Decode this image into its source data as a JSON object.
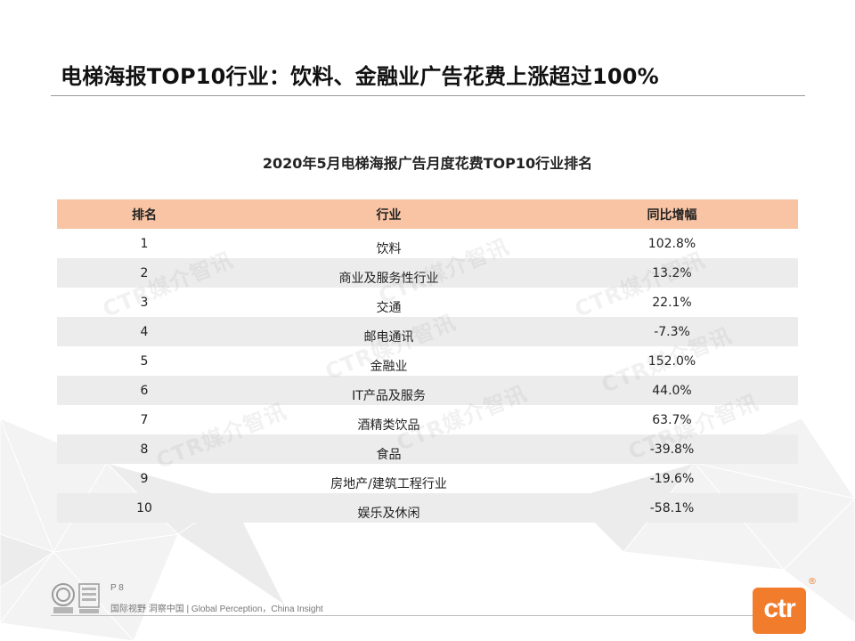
{
  "slide": {
    "title": "电梯海报TOP10行业：饮料、金融业广告花费上涨超过100%"
  },
  "table": {
    "title": "2020年5月电梯海报广告月度花费TOP10行业排名",
    "headers": [
      "排名",
      "行业",
      "同比增幅"
    ],
    "rows": [
      {
        "rank": "1",
        "industry": "饮料",
        "yoy": "102.8%"
      },
      {
        "rank": "2",
        "industry": "商业及服务性行业",
        "yoy": "13.2%"
      },
      {
        "rank": "3",
        "industry": "交通",
        "yoy": "22.1%"
      },
      {
        "rank": "4",
        "industry": "邮电通讯",
        "yoy": "-7.3%"
      },
      {
        "rank": "5",
        "industry": "金融业",
        "yoy": "152.0%"
      },
      {
        "rank": "6",
        "industry": "IT产品及服务",
        "yoy": "44.0%"
      },
      {
        "rank": "7",
        "industry": "酒精类饮品",
        "yoy": "63.7%"
      },
      {
        "rank": "8",
        "industry": "食品",
        "yoy": "-39.8%"
      },
      {
        "rank": "9",
        "industry": "房地产/建筑工程行业",
        "yoy": "-19.6%"
      },
      {
        "rank": "10",
        "industry": "娱乐及休闲",
        "yoy": "-58.1%"
      }
    ],
    "header_color": "#f8c4a4",
    "stripe_color": "#ececec"
  },
  "watermark": {
    "text": "CTR媒介智讯"
  },
  "footer": {
    "page": "P 8",
    "slogan": "国际视野 洞察中国 | Global Perception，China Insight",
    "logo_text": "ctr",
    "logo_mark": "®",
    "logo_color": "#f07c2c",
    "badge_icons": [
      "certification-seal-icon",
      "sgs-badge-icon"
    ]
  }
}
